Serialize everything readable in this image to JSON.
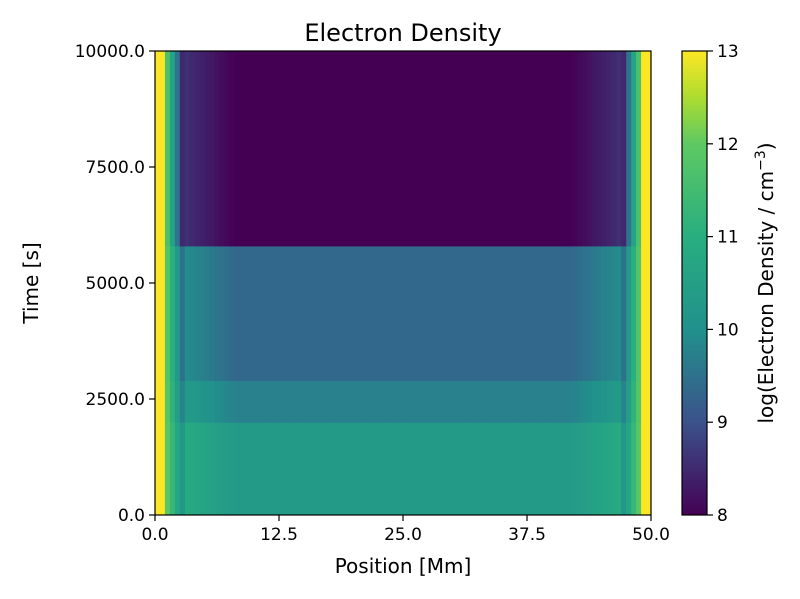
{
  "chart_data": {
    "type": "heatmap",
    "title": "Electron Density",
    "xlabel": "Position [Mm]",
    "ylabel": "Time [s]",
    "xlim": [
      0.0,
      50.0
    ],
    "ylim": [
      0.0,
      10000.0
    ],
    "x_ticks": [
      "0.0",
      "12.5",
      "25.0",
      "37.5",
      "50.0"
    ],
    "y_ticks": [
      "0.0",
      "2500.0",
      "5000.0",
      "7500.0",
      "10000.0"
    ],
    "colorbar": {
      "label": "log(Electron Density / cm",
      "label_exponent": "−3",
      "label_close": ")",
      "min": 8,
      "max": 13,
      "ticks": [
        "8",
        "9",
        "10",
        "11",
        "12",
        "13"
      ],
      "colormap": "viridis"
    },
    "regions": [
      {
        "t_start": 0,
        "t_end": 2000,
        "log_density_center": 10.3,
        "log_density_edge": 13.0
      },
      {
        "t_start": 2000,
        "t_end": 2900,
        "log_density_center": 9.75,
        "log_density_edge": 13.0
      },
      {
        "t_start": 2900,
        "t_end": 5800,
        "log_density_center": 9.35,
        "log_density_edge": 13.0
      },
      {
        "t_start": 5800,
        "t_end": 10000,
        "log_density_center": 8.0,
        "log_density_edge": 13.0
      }
    ]
  }
}
